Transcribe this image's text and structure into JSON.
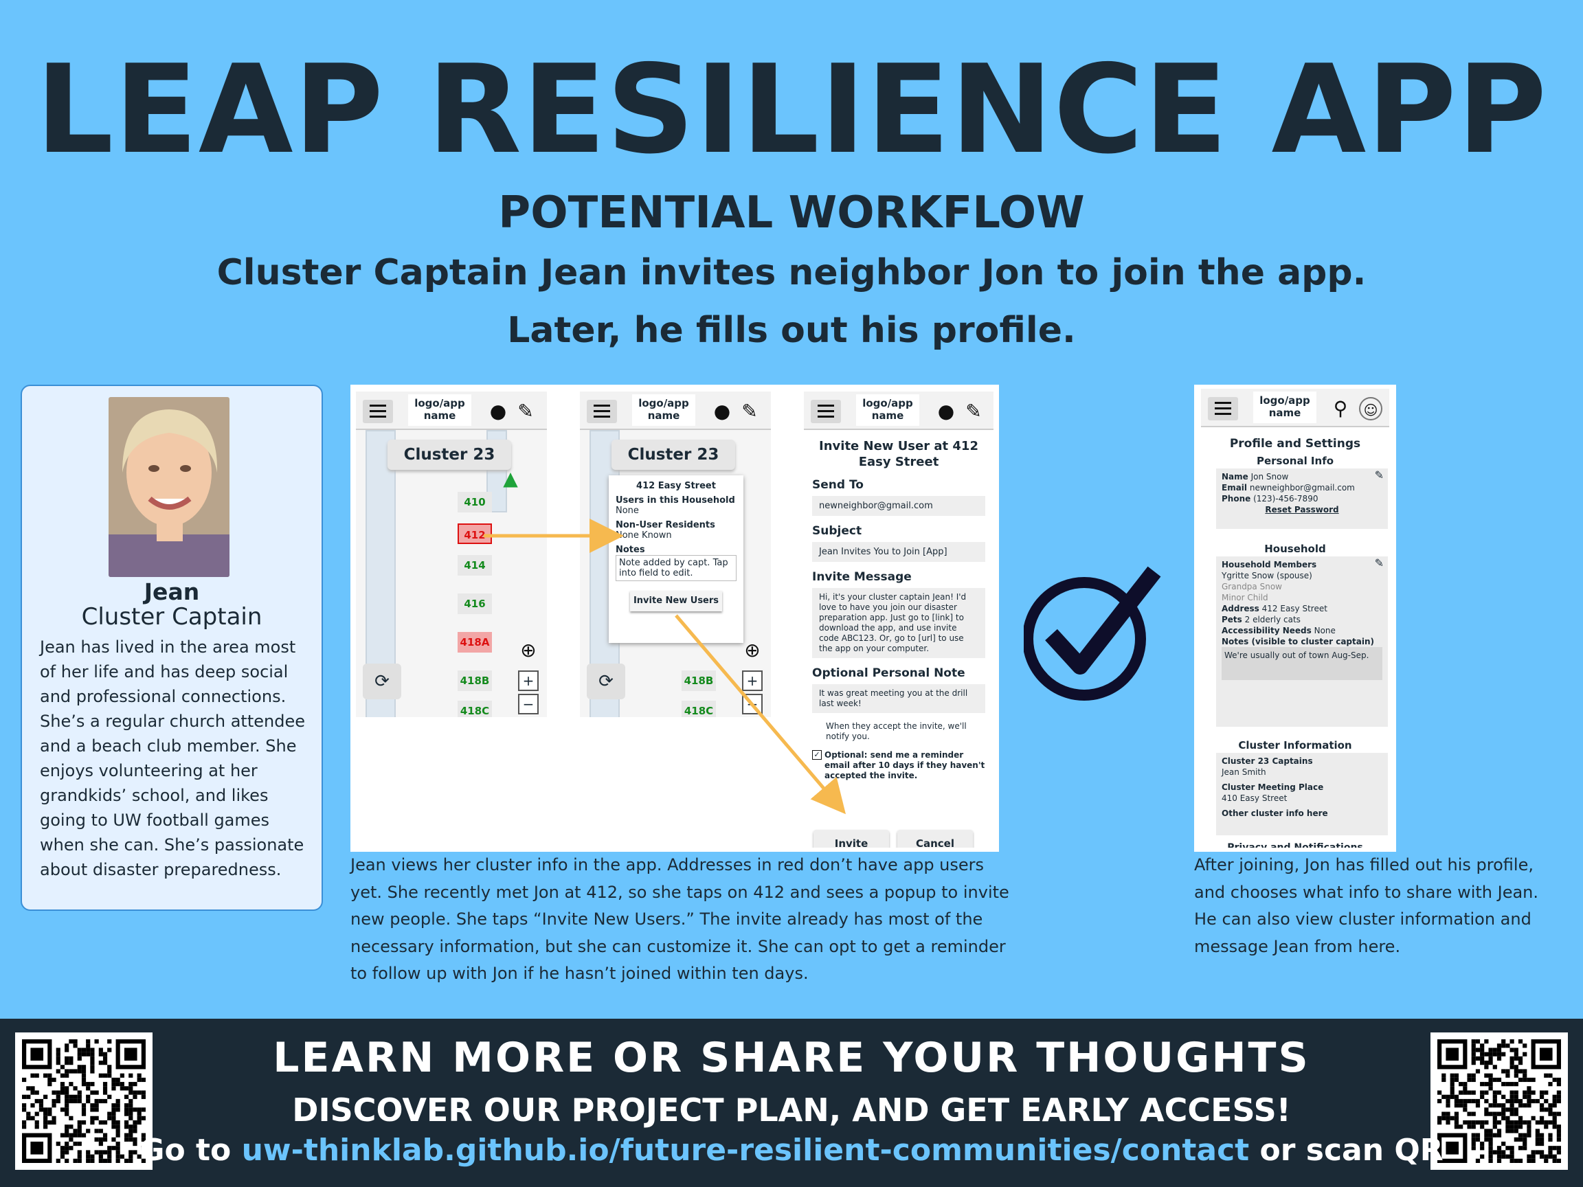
{
  "title": "LEAP RESILIENCE APP",
  "subtitle": "POTENTIAL WORKFLOW",
  "description_line1": "Cluster Captain Jean invites neighbor Jon to join the app.",
  "description_line2": "Later, he fills out his profile.",
  "persona": {
    "name": "Jean",
    "role": "Cluster Captain",
    "bio": "Jean has lived in the area most of her life and has deep social and professional connections. She’s a regular church attendee and a beach club member. She enjoys volunteering at her grandkids’ school, and likes going to UW football games when she can. She’s passionate about disaster preparedness."
  },
  "mockup": {
    "logo_label": "logo/app\nname",
    "cluster_label": "Cluster 23",
    "lots": [
      "410",
      "412",
      "414",
      "416",
      "418A",
      "418B",
      "418C"
    ],
    "popup": {
      "address": "412 Easy Street",
      "users_label": "Users in this Household",
      "users_value": "None",
      "nonuser_label": "Non-User Residents",
      "nonuser_value": "None Known",
      "notes_label": "Notes",
      "notes_value": "Note added by capt. Tap into field to edit.",
      "invite_button": "Invite New Users"
    },
    "invite": {
      "title": "Invite New User at 412 Easy Street",
      "send_to_label": "Send To",
      "send_to_value": "newneighbor@gmail.com",
      "subject_label": "Subject",
      "subject_value": "Jean Invites You to Join [App]",
      "message_label": "Invite Message",
      "message_value": "Hi, it's your cluster captain Jean! I'd love to have you join our disaster preparation app.  Just go to [link] to download the app, and use invite code ABC123. Or, go to [url] to use the app on your computer.",
      "note_label": "Optional Personal Note",
      "note_value": "It was great meeting you at the drill last week!",
      "accept_text": "When they accept the invite, we'll notify you.",
      "reminder_text": "Optional: send me a reminder email after 10 days if they haven't accepted the invite.",
      "invite_button": "Invite",
      "cancel_button": "Cancel"
    }
  },
  "caption_middle": "Jean views her cluster info in the app. Addresses in red don’t have app users yet. She recently met Jon at 412, so she taps on 412 and sees a popup to invite new people. She taps “Invite New Users.” The invite already has most of the necessary information, but she can customize it. She can opt to get a reminder to follow up with Jon if he hasn’t joined within ten days.",
  "profile": {
    "header": "Profile and Settings",
    "personal_info": "Personal Info",
    "name_label": "Name",
    "name_value": "Jon Snow",
    "email_label": "Email",
    "email_value": "newneighbor@gmail.com",
    "phone_label": "Phone",
    "phone_value": "(123)-456-7890",
    "reset_password": "Reset Password",
    "household": "Household",
    "household_members": "Household Members",
    "member1": "Ygritte Snow (spouse)",
    "member2": "Grandpa Snow",
    "member3": "Minor Child",
    "address_label": "Address",
    "address_value": "412 Easy Street",
    "pets_label": "Pets",
    "pets_value": "2 elderly cats",
    "access_label": "Accessibility Needs",
    "access_value": "None",
    "notes_label": "Notes (visible to cluster captain)",
    "notes_value": "We're usually out of town Aug-Sep.",
    "cluster_info": "Cluster Information",
    "captains_label": "Cluster 23 Captains",
    "captains_value": "Jean Smith",
    "meeting_label": "Cluster Meeting Place",
    "meeting_value": "410 Easy Street",
    "other_info": "Other cluster info here",
    "privacy": "Privacy and Notifications"
  },
  "caption_right": "After joining, Jon has filled out his profile, and chooses what info to share with Jean. He can also view cluster information and message Jean from here.",
  "footer": {
    "heading": "LEARN MORE OR SHARE YOUR THOUGHTS",
    "subheading": "DISCOVER OUR PROJECT PLAN, AND GET EARLY ACCESS!",
    "url_prefix": "Go to",
    "url": "uw-thinklab.github.io/future-resilient-communities/contact",
    "url_suffix": "or scan QR"
  },
  "colors": {
    "background": "#6bc4fd",
    "dark": "#1b2a36",
    "link": "#6bc4fd",
    "arrow": "#f6b94f"
  }
}
